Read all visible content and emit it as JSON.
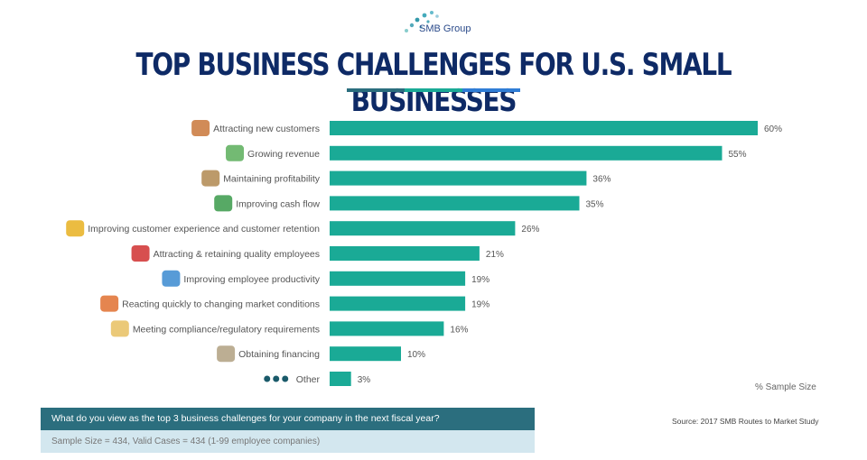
{
  "logo": {
    "text": "SMB Group"
  },
  "chart_data": {
    "type": "bar",
    "orientation": "horizontal",
    "title": "TOP BUSINESS CHALLENGES FOR U.S. SMALL BUSINESSES",
    "categories": [
      "Attracting new customers",
      "Growing revenue",
      "Maintaining profitability",
      "Improving cash flow",
      "Improving customer experience and customer retention",
      "Attracting & retaining quality employees",
      "Improving employee productivity",
      "Reacting quickly to changing market conditions",
      "Meeting compliance/regulatory requirements",
      "Obtaining financing",
      "Other"
    ],
    "values": [
      60,
      55,
      36,
      35,
      26,
      21,
      19,
      19,
      16,
      10,
      3
    ],
    "value_labels": [
      "60%",
      "55%",
      "36%",
      "35%",
      "26%",
      "21%",
      "19%",
      "19%",
      "16%",
      "10%",
      "3%"
    ],
    "icons": [
      "people-icon",
      "growth-chart-icon",
      "money-bag-icon",
      "cash-icon",
      "people-arrows-icon",
      "magnet-icon",
      "gears-icon",
      "person-speech-icon",
      "document-folder-icon",
      "bank-icon",
      "dots-icon"
    ],
    "xlabel": "% Sample Size",
    "xlim": [
      0,
      60
    ],
    "grid": false,
    "bar_color": "#1aaa96"
  },
  "question": "What do you view as the top 3 business challenges for your company in the next fiscal year?",
  "sample": "Sample Size = 434, Valid Cases = 434 (1-99 employee companies)",
  "source": "Source: 2017 SMB Routes to Market Study",
  "colors": {
    "title": "#0e2a66",
    "underline": [
      "#2b6e7e",
      "#1aaa96",
      "#2f7dd6"
    ]
  }
}
